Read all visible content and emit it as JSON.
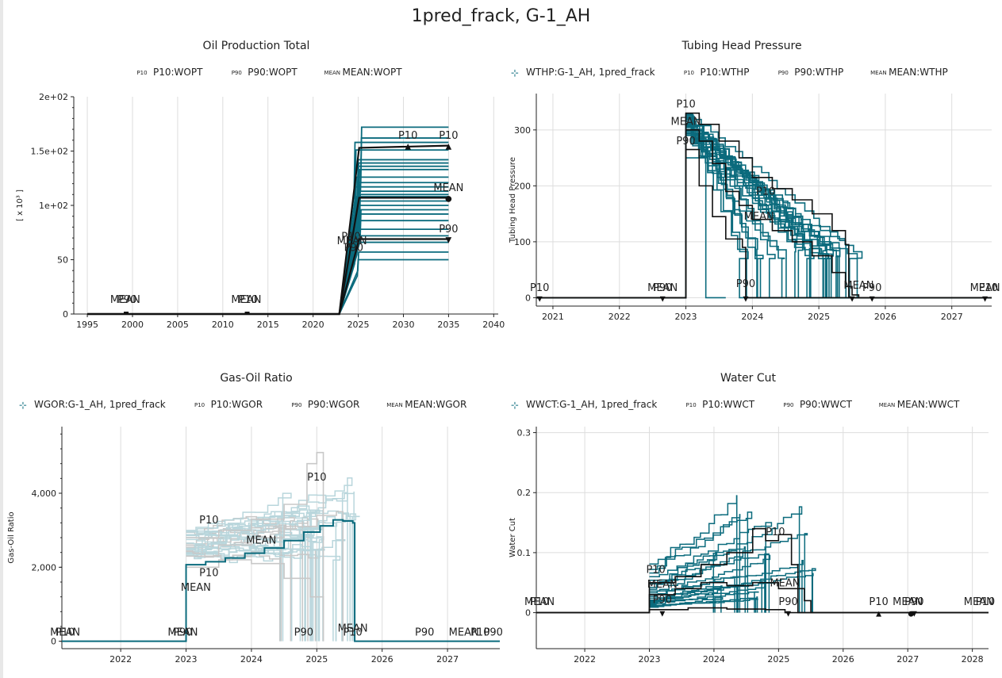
{
  "title": "1pred_frack, G-1_AH",
  "colors": {
    "teal": "#0b6b7d",
    "light": "#b9d6dc",
    "gray": "#c8c8c8",
    "dark": "#111111",
    "grid": "#dddddd"
  },
  "chart_data": [
    {
      "type": "line",
      "title": "Oil Production Total",
      "legend": [
        "P10:WOPT",
        "P90:WOPT",
        "MEAN:WOPT"
      ],
      "legend_marks": [
        "P10",
        "P90",
        "MEAN"
      ],
      "ylabel": "[ x 10³ ]",
      "xlim": [
        1993.5,
        2040.5
      ],
      "ylim": [
        0,
        200
      ],
      "xticks": [
        1995,
        2000,
        2005,
        2010,
        2015,
        2020,
        2025,
        2030,
        2035,
        2040
      ],
      "xtick_labels": [
        "1995",
        "2000",
        "2005",
        "2010",
        "2015",
        "2020",
        "2025",
        "2030",
        "2035",
        "2040"
      ],
      "yticks": [
        0,
        50,
        100,
        150,
        200
      ],
      "ytick_labels": [
        "0",
        "50",
        "1e+02",
        "1.5e+02",
        "2e+02"
      ],
      "ensemble_final_values": [
        50,
        57,
        66,
        72,
        78,
        86,
        92,
        96,
        100,
        104,
        108,
        110,
        113,
        117,
        121,
        126,
        133,
        136,
        139,
        142,
        151,
        158,
        162,
        172
      ],
      "series": [
        {
          "name": "P10:WOPT",
          "points": [
            [
              1995,
              0
            ],
            [
              2022.9,
              0
            ],
            [
              2025.1,
              153
            ],
            [
              2035,
              155
            ]
          ]
        },
        {
          "name": "MEAN:WOPT",
          "points": [
            [
              1995,
              0
            ],
            [
              2022.9,
              0
            ],
            [
              2025.1,
              107
            ],
            [
              2035,
              107
            ]
          ]
        },
        {
          "name": "P90:WOPT",
          "points": [
            [
              1995,
              0
            ],
            [
              2022.9,
              0
            ],
            [
              2025.1,
              69
            ],
            [
              2035,
              69
            ]
          ]
        }
      ],
      "annotations": [
        {
          "text": "MEAN",
          "x": 1999.2,
          "y": 8
        },
        {
          "text": "P90",
          "x": 1999.4,
          "y": 8
        },
        {
          "text": "MEAN",
          "x": 2012.6,
          "y": 8
        },
        {
          "text": "P10",
          "x": 2012.8,
          "y": 8
        },
        {
          "text": "P10",
          "x": 2024.2,
          "y": 66
        },
        {
          "text": "MEAN",
          "x": 2024.3,
          "y": 62
        },
        {
          "text": "P90",
          "x": 2024.5,
          "y": 56
        },
        {
          "text": "P10",
          "x": 2030.5,
          "y": 159
        },
        {
          "text": "P10",
          "x": 2035,
          "y": 159
        },
        {
          "text": "MEAN",
          "x": 2035,
          "y": 111
        },
        {
          "text": "P90",
          "x": 2035,
          "y": 73
        }
      ]
    },
    {
      "type": "line",
      "title": "Tubing Head Pressure",
      "legend": [
        "WTHP:G-1_AH, 1pred_frack",
        "P10:WTHP",
        "P90:WTHP",
        "MEAN:WTHP"
      ],
      "legend_marks": [
        "",
        "P10",
        "P90",
        "MEAN"
      ],
      "ylabel": "Tubing Head Pressure",
      "xlim": [
        2020.75,
        2027.6
      ],
      "ylim": [
        -15,
        365
      ],
      "xticks": [
        2021,
        2022,
        2023,
        2024,
        2025,
        2026,
        2027
      ],
      "xtick_labels": [
        "2021",
        "2022",
        "2023",
        "2024",
        "2025",
        "2026",
        "2027"
      ],
      "yticks": [
        0,
        100,
        200,
        300
      ],
      "ytick_labels": [
        "0",
        "100",
        "200",
        "300"
      ],
      "series": [
        {
          "name": "P10:WTHP",
          "points": [
            [
              2020.75,
              0
            ],
            [
              2022.99,
              0
            ],
            [
              2023.0,
              330
            ],
            [
              2023.2,
              310
            ],
            [
              2023.5,
              280
            ],
            [
              2023.8,
              250
            ],
            [
              2024.0,
              215
            ],
            [
              2024.3,
              195
            ],
            [
              2024.6,
              175
            ],
            [
              2024.9,
              150
            ],
            [
              2025.2,
              120
            ],
            [
              2025.4,
              95
            ],
            [
              2025.45,
              0
            ],
            [
              2027.6,
              0
            ]
          ]
        },
        {
          "name": "MEAN:WTHP",
          "points": [
            [
              2020.75,
              0
            ],
            [
              2022.99,
              0
            ],
            [
              2023.0,
              300
            ],
            [
              2023.2,
              280
            ],
            [
              2023.4,
              240
            ],
            [
              2023.6,
              190
            ],
            [
              2023.8,
              165
            ],
            [
              2024.0,
              140
            ],
            [
              2024.3,
              120
            ],
            [
              2024.6,
              100
            ],
            [
              2024.9,
              75
            ],
            [
              2025.2,
              45
            ],
            [
              2025.4,
              20
            ],
            [
              2025.5,
              5
            ],
            [
              2025.6,
              0
            ],
            [
              2027.6,
              0
            ]
          ]
        },
        {
          "name": "P90:WTHP",
          "points": [
            [
              2020.75,
              0
            ],
            [
              2022.99,
              0
            ],
            [
              2023.0,
              265
            ],
            [
              2023.2,
              200
            ],
            [
              2023.4,
              145
            ],
            [
              2023.6,
              105
            ],
            [
              2023.85,
              90
            ],
            [
              2023.9,
              0
            ],
            [
              2027.6,
              0
            ]
          ]
        }
      ],
      "annotations": [
        {
          "text": "P10",
          "x": 2023.0,
          "y": 336
        },
        {
          "text": "MEAN",
          "x": 2023.0,
          "y": 305
        },
        {
          "text": "P90",
          "x": 2023.0,
          "y": 270
        },
        {
          "text": "P10",
          "x": 2024.2,
          "y": 180
        },
        {
          "text": "MEAN",
          "x": 2024.1,
          "y": 135
        },
        {
          "text": "P90",
          "x": 2023.9,
          "y": 15
        },
        {
          "text": "MEAN",
          "x": 2025.6,
          "y": 12
        },
        {
          "text": "P90",
          "x": 2025.8,
          "y": 8
        },
        {
          "text": "P10",
          "x": 2020.8,
          "y": 8
        },
        {
          "text": "MEAN",
          "x": 2022.65,
          "y": 8
        },
        {
          "text": "P90",
          "x": 2022.65,
          "y": 8
        },
        {
          "text": "MEAN",
          "x": 2027.5,
          "y": 8
        },
        {
          "text": "P10",
          "x": 2027.55,
          "y": 8
        }
      ]
    },
    {
      "type": "line",
      "title": "Gas-Oil Ratio",
      "legend": [
        "WGOR:G-1_AH, 1pred_frack",
        "P10:WGOR",
        "P90:WGOR",
        "MEAN:WGOR"
      ],
      "legend_marks": [
        "",
        "P10",
        "P90",
        "MEAN"
      ],
      "ylabel": "Gas-Oil Ratio",
      "xlim": [
        2021.1,
        2027.8
      ],
      "ylim": [
        -200,
        5800
      ],
      "xticks": [
        2022,
        2023,
        2024,
        2025,
        2026,
        2027
      ],
      "xtick_labels": [
        "2022",
        "2023",
        "2024",
        "2025",
        "2026",
        "2027"
      ],
      "yticks": [
        0,
        2000,
        4000
      ],
      "ytick_labels": [
        "0",
        "2,000",
        "4,000"
      ],
      "series": [
        {
          "name": "WGOR:G-1_AH, 1pred_frack",
          "points": [
            [
              2021.1,
              0
            ],
            [
              2022.99,
              0
            ],
            [
              2023.0,
              2070
            ],
            [
              2023.3,
              2150
            ],
            [
              2023.6,
              2250
            ],
            [
              2023.9,
              2380
            ],
            [
              2024.2,
              2520
            ],
            [
              2024.5,
              2720
            ],
            [
              2024.8,
              2950
            ],
            [
              2025.05,
              3120
            ],
            [
              2025.25,
              3280
            ],
            [
              2025.4,
              3250
            ],
            [
              2025.55,
              3200
            ],
            [
              2025.58,
              0
            ],
            [
              2027.8,
              0
            ]
          ]
        },
        {
          "name": "P10:WGOR",
          "points": [
            [
              2023.0,
              2800
            ],
            [
              2023.5,
              3000
            ],
            [
              2024.0,
              3300
            ],
            [
              2024.5,
              3700
            ],
            [
              2024.85,
              4800
            ],
            [
              2025.0,
              5100
            ],
            [
              2025.1,
              0
            ]
          ]
        },
        {
          "name": "MEAN:WGOR",
          "points": [
            [
              2023.0,
              2300
            ],
            [
              2023.5,
              2600
            ],
            [
              2024.0,
              2800
            ],
            [
              2024.5,
              3100
            ],
            [
              2025.0,
              3400
            ],
            [
              2025.3,
              3500
            ],
            [
              2025.4,
              0
            ]
          ]
        },
        {
          "name": "P90:WGOR",
          "points": [
            [
              2023.0,
              2000
            ],
            [
              2023.5,
              2200
            ],
            [
              2024.0,
              2100
            ],
            [
              2024.5,
              1700
            ],
            [
              2024.9,
              1200
            ],
            [
              2025.1,
              0
            ]
          ]
        }
      ],
      "annotations": [
        {
          "text": "P10",
          "x": 2021.15,
          "y": 90
        },
        {
          "text": "MEAN",
          "x": 2021.15,
          "y": 90
        },
        {
          "text": "MEAN",
          "x": 2022.95,
          "y": 90
        },
        {
          "text": "P90",
          "x": 2022.95,
          "y": 90
        },
        {
          "text": "P10",
          "x": 2023.35,
          "y": 1700
        },
        {
          "text": "MEAN",
          "x": 2023.15,
          "y": 1300
        },
        {
          "text": "P10",
          "x": 2023.35,
          "y": 3120
        },
        {
          "text": "MEAN",
          "x": 2024.15,
          "y": 2570
        },
        {
          "text": "P10",
          "x": 2025.0,
          "y": 4280
        },
        {
          "text": "P90",
          "x": 2024.8,
          "y": 90
        },
        {
          "text": "MEAN",
          "x": 2025.55,
          "y": 200
        },
        {
          "text": "P10",
          "x": 2025.55,
          "y": 90
        },
        {
          "text": "P90",
          "x": 2026.65,
          "y": 90
        },
        {
          "text": "MEAN",
          "x": 2027.25,
          "y": 90
        },
        {
          "text": "P10",
          "x": 2027.5,
          "y": 90
        },
        {
          "text": "P90",
          "x": 2027.7,
          "y": 90
        }
      ]
    },
    {
      "type": "line",
      "title": "Water Cut",
      "legend": [
        "WWCT:G-1_AH, 1pred_frack",
        "P10:WWCT",
        "P90:WWCT",
        "MEAN:WWCT"
      ],
      "legend_marks": [
        "",
        "P10",
        "P90",
        "MEAN"
      ],
      "ylabel": "Water Cut",
      "xlim": [
        2021.25,
        2028.25
      ],
      "ylim": [
        -0.06,
        0.31
      ],
      "xticks": [
        2022,
        2023,
        2024,
        2025,
        2026,
        2027,
        2028
      ],
      "xtick_labels": [
        "2022",
        "2023",
        "2024",
        "2025",
        "2026",
        "2027",
        "2028"
      ],
      "yticks": [
        0,
        0.1,
        0.2,
        0.3
      ],
      "ytick_labels": [
        "0",
        "0.1",
        "0.2",
        "0.3"
      ],
      "series": [
        {
          "name": "P10:WWCT",
          "points": [
            [
              2021.25,
              0
            ],
            [
              2022.99,
              0
            ],
            [
              2023.0,
              0.05
            ],
            [
              2023.4,
              0.06
            ],
            [
              2023.8,
              0.08
            ],
            [
              2024.2,
              0.1
            ],
            [
              2024.6,
              0.14
            ],
            [
              2024.8,
              0.12
            ],
            [
              2025.0,
              0.13
            ],
            [
              2025.2,
              0.08
            ],
            [
              2025.3,
              0
            ],
            [
              2028.25,
              0
            ]
          ]
        },
        {
          "name": "MEAN:WWCT",
          "points": [
            [
              2021.25,
              0
            ],
            [
              2022.99,
              0
            ],
            [
              2023.0,
              0.03
            ],
            [
              2023.4,
              0.04
            ],
            [
              2023.8,
              0.05
            ],
            [
              2024.2,
              0.045
            ],
            [
              2024.6,
              0.05
            ],
            [
              2025.0,
              0.04
            ],
            [
              2025.4,
              0.02
            ],
            [
              2025.5,
              0
            ],
            [
              2028.25,
              0
            ]
          ]
        },
        {
          "name": "P90:WWCT",
          "points": [
            [
              2021.25,
              0
            ],
            [
              2022.99,
              0
            ],
            [
              2023.0,
              0.005
            ],
            [
              2023.6,
              0.008
            ],
            [
              2024.2,
              0.006
            ],
            [
              2024.8,
              0.005
            ],
            [
              2025.1,
              0
            ],
            [
              2028.25,
              0
            ]
          ]
        }
      ],
      "annotations": [
        {
          "text": "P10",
          "x": 2021.3,
          "y": 0.009
        },
        {
          "text": "MEAN",
          "x": 2021.3,
          "y": 0.009
        },
        {
          "text": "P10",
          "x": 2023.1,
          "y": 0.062
        },
        {
          "text": "MEAN",
          "x": 2023.2,
          "y": 0.038
        },
        {
          "text": "P90",
          "x": 2023.2,
          "y": 0.012
        },
        {
          "text": "P10",
          "x": 2024.95,
          "y": 0.125
        },
        {
          "text": "MEAN",
          "x": 2025.1,
          "y": 0.04
        },
        {
          "text": "P90",
          "x": 2025.15,
          "y": 0.009
        },
        {
          "text": "P10",
          "x": 2026.55,
          "y": 0.009
        },
        {
          "text": "MEAN",
          "x": 2027.0,
          "y": 0.009
        },
        {
          "text": "P90",
          "x": 2027.1,
          "y": 0.009
        },
        {
          "text": "MEAN",
          "x": 2028.1,
          "y": 0.009
        },
        {
          "text": "P10",
          "x": 2028.2,
          "y": 0.009
        }
      ]
    }
  ]
}
